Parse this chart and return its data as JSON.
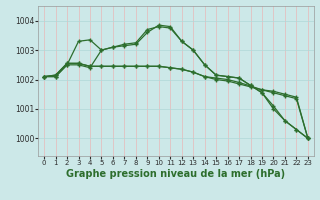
{
  "background_color": "#cce8e8",
  "grid_color_v": "#e8b8b8",
  "grid_color_h": "#b0d8d8",
  "line_color": "#2d6e2d",
  "xlabel": "Graphe pression niveau de la mer (hPa)",
  "xlabel_fontsize": 7.0,
  "ylim": [
    999.4,
    1004.5
  ],
  "yticks": [
    1000,
    1001,
    1002,
    1003,
    1004
  ],
  "xlim": [
    -0.5,
    23.5
  ],
  "xticks": [
    0,
    1,
    2,
    3,
    4,
    5,
    6,
    7,
    8,
    9,
    10,
    11,
    12,
    13,
    14,
    15,
    16,
    17,
    18,
    19,
    20,
    21,
    22,
    23
  ],
  "line1": [
    1002.1,
    1002.1,
    1002.5,
    1003.3,
    1003.35,
    1003.0,
    1003.1,
    1003.15,
    1003.2,
    1003.6,
    1003.85,
    1003.8,
    1003.3,
    1003.0,
    1002.5,
    1002.15,
    1002.1,
    1002.05,
    1001.8,
    1001.55,
    1001.0,
    1000.6,
    1000.3,
    1000.0
  ],
  "line2": [
    1002.1,
    1002.1,
    1002.5,
    1002.5,
    1002.4,
    1003.0,
    1003.1,
    1003.2,
    1003.25,
    1003.7,
    1003.8,
    1003.75,
    1003.3,
    1003.0,
    1002.5,
    1002.15,
    1002.1,
    1002.05,
    1001.8,
    1001.55,
    1001.1,
    1000.6,
    1000.3,
    1000.0
  ],
  "line3": [
    1002.1,
    1002.15,
    1002.55,
    1002.55,
    1002.45,
    1002.45,
    1002.45,
    1002.45,
    1002.45,
    1002.45,
    1002.45,
    1002.4,
    1002.35,
    1002.25,
    1002.1,
    1002.05,
    1002.0,
    1001.9,
    1001.78,
    1001.65,
    1001.55,
    1001.45,
    1001.35,
    1000.0
  ],
  "line4": [
    1002.1,
    1002.15,
    1002.55,
    1002.55,
    1002.45,
    1002.45,
    1002.45,
    1002.45,
    1002.45,
    1002.45,
    1002.45,
    1002.4,
    1002.35,
    1002.25,
    1002.1,
    1002.0,
    1001.95,
    1001.85,
    1001.75,
    1001.65,
    1001.6,
    1001.5,
    1001.4,
    1000.0
  ]
}
